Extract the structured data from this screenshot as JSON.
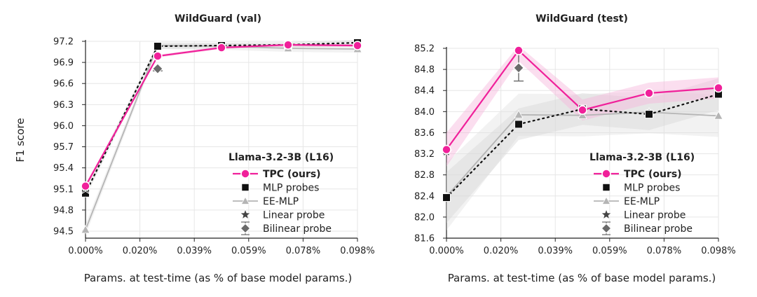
{
  "shared": {
    "ylabel": "F1 score",
    "xlabel": "Params. at test-time (as % of base model params.)",
    "x_tick_labels": [
      "0.000%",
      "0.020%",
      "0.039%",
      "0.059%",
      "0.078%",
      "0.098%"
    ]
  },
  "chart_data": [
    {
      "type": "line",
      "title": "WildGuard (val)",
      "xlabel": "Params. at test-time (as % of base model params.)",
      "ylabel": "F1 score",
      "xlim": [
        0,
        0.098
      ],
      "ylim": [
        94.4,
        97.2
      ],
      "yticks": [
        "97.2",
        "96.9",
        "96.6",
        "96.3",
        "96.0",
        "95.7",
        "95.4",
        "95.1",
        "94.8",
        "94.5"
      ],
      "ytick_values": [
        97.2,
        96.9,
        96.6,
        96.3,
        96.0,
        95.7,
        95.4,
        95.1,
        94.8,
        94.5
      ],
      "legend": {
        "title": "Llama-3.2-3B (L16)",
        "entries": [
          "TPC (ours)",
          "MLP probes",
          "EE-MLP",
          "Linear probe",
          "Bilinear probe"
        ]
      },
      "series": [
        {
          "name": "TPC (ours)",
          "color": "#f0209a",
          "x": [
            0.0,
            0.026,
            0.049,
            0.073,
            0.098
          ],
          "y": [
            95.14,
            96.99,
            97.11,
            97.15,
            97.14
          ],
          "band": 0.02
        },
        {
          "name": "MLP probes",
          "color": "#111111",
          "x": [
            0.0,
            0.026,
            0.049,
            0.073,
            0.098
          ],
          "y": [
            95.04,
            97.13,
            97.14,
            97.15,
            97.18
          ],
          "band": 0.04
        },
        {
          "name": "EE-MLP",
          "color": "#b5b5b5",
          "x": [
            0.0,
            0.026,
            0.049,
            0.073,
            0.098
          ],
          "y": [
            94.52,
            97.14,
            97.13,
            97.1,
            97.09
          ],
          "band": 0.05
        },
        {
          "name": "Linear probe",
          "color": "#444444",
          "x": [
            0.0
          ],
          "y": [
            95.1
          ]
        },
        {
          "name": "Bilinear probe",
          "color": "#6a6a6a",
          "x": [
            0.026
          ],
          "y": [
            96.81
          ],
          "err": 0.03
        }
      ]
    },
    {
      "type": "line",
      "title": "WildGuard (test)",
      "xlabel": "Params. at test-time (as % of base model params.)",
      "ylabel": "",
      "xlim": [
        0,
        0.098
      ],
      "ylim": [
        81.6,
        85.2
      ],
      "yticks": [
        "85.2",
        "84.8",
        "84.4",
        "84.0",
        "83.6",
        "83.2",
        "82.8",
        "82.4",
        "82.0",
        "81.6"
      ],
      "ytick_values": [
        85.2,
        84.8,
        84.4,
        84.0,
        83.6,
        83.2,
        82.8,
        82.4,
        82.0,
        81.6
      ],
      "legend": {
        "title": "Llama-3.2-3B (L16)",
        "entries": [
          "TPC (ours)",
          "MLP probes",
          "EE-MLP",
          "Linear probe",
          "Bilinear probe"
        ]
      },
      "series": [
        {
          "name": "TPC (ours)",
          "color": "#f0209a",
          "x": [
            0.0,
            0.026,
            0.049,
            0.073,
            0.098
          ],
          "y": [
            83.28,
            85.16,
            84.03,
            84.35,
            84.45
          ],
          "band": 0.2
        },
        {
          "name": "MLP probes",
          "color": "#111111",
          "x": [
            0.0,
            0.026,
            0.049,
            0.073,
            0.098
          ],
          "y": [
            82.37,
            83.76,
            84.05,
            83.95,
            84.33
          ],
          "band": 0.3
        },
        {
          "name": "EE-MLP",
          "color": "#b5b5b5",
          "x": [
            0.0,
            0.026,
            0.049,
            0.073,
            0.098
          ],
          "y": [
            82.39,
            83.94,
            83.93,
            83.99,
            83.92
          ],
          "band": 0.4
        },
        {
          "name": "Linear probe",
          "color": "#444444",
          "x": [
            0.0
          ],
          "y": [
            83.24
          ]
        },
        {
          "name": "Bilinear probe",
          "color": "#6a6a6a",
          "x": [
            0.026
          ],
          "y": [
            84.83
          ],
          "err": 0.25
        }
      ]
    }
  ]
}
